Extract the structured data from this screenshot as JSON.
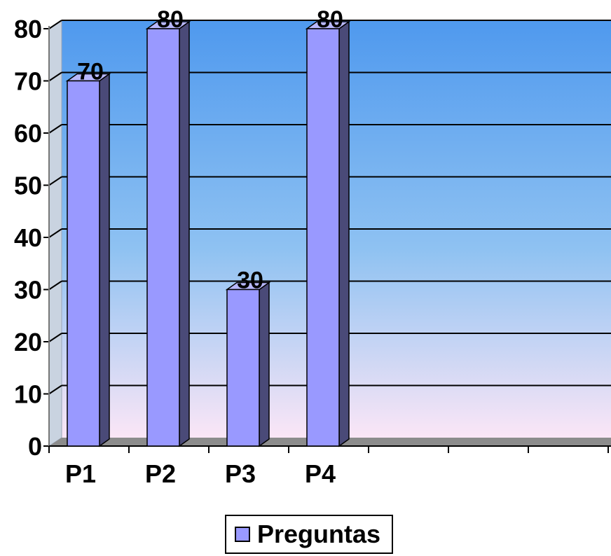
{
  "chart_data": {
    "type": "bar",
    "style": "3d-column",
    "categories": [
      "P1",
      "P2",
      "P3",
      "P4"
    ],
    "series": [
      {
        "name": "Preguntas",
        "values": [
          70,
          80,
          30,
          80
        ]
      }
    ],
    "data_labels": [
      "70",
      "80",
      "30",
      "80"
    ],
    "y_ticks": [
      "0",
      "10",
      "20",
      "30",
      "40",
      "50",
      "60",
      "70",
      "80"
    ],
    "ylim": [
      0,
      80
    ],
    "title": "",
    "xlabel": "",
    "ylabel": "",
    "grid": true,
    "legend_position": "bottom",
    "colors": {
      "bar_front": "#9999ff",
      "bar_side": "#4a4a78",
      "bar_top": "#b8b8ff",
      "floor": "#8c8c8c",
      "plot_top": "#4f99ee",
      "plot_bottom": "#fbe6f6"
    }
  },
  "legend": {
    "label": "Preguntas"
  }
}
